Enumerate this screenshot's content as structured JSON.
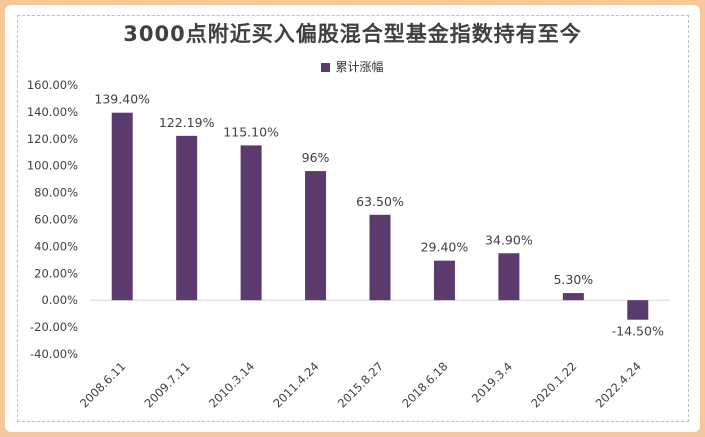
{
  "title": "3000点附近买入偏股混合型基金指数持有至今",
  "colors": {
    "bar": "#5b3a6e",
    "border": "#f6c79a",
    "grid": "#d9d9d9",
    "text": "#404040"
  },
  "chart_data": {
    "type": "bar",
    "title": "3000点附近买入偏股混合型基金指数持有至今",
    "categories": [
      "2008.6.11",
      "2009.7.11",
      "2010.3.14",
      "2011.4.24",
      "2015.8.27",
      "2018.6.18",
      "2019.3.4",
      "2020.1.22",
      "2022.4.24"
    ],
    "series": [
      {
        "name": "累计涨幅",
        "values": [
          139.4,
          122.19,
          115.1,
          96,
          63.5,
          29.4,
          34.9,
          5.3,
          -14.5
        ],
        "labels": [
          "139.40%",
          "122.19%",
          "115.10%",
          "96%",
          "63.50%",
          "29.40%",
          "34.90%",
          "5.30%",
          "-14.50%"
        ]
      }
    ],
    "ylim": [
      -40,
      160
    ],
    "yticks": [
      160,
      140,
      120,
      100,
      80,
      60,
      40,
      20,
      0,
      -20,
      -40
    ],
    "ytick_labels": [
      "160.00%",
      "140.00%",
      "120.00%",
      "100.00%",
      "80.00%",
      "60.00%",
      "40.00%",
      "20.00%",
      "0.00%",
      "-20.00%",
      "-40.00%"
    ],
    "legend_position": "top-center",
    "xlabel": "",
    "ylabel": ""
  }
}
